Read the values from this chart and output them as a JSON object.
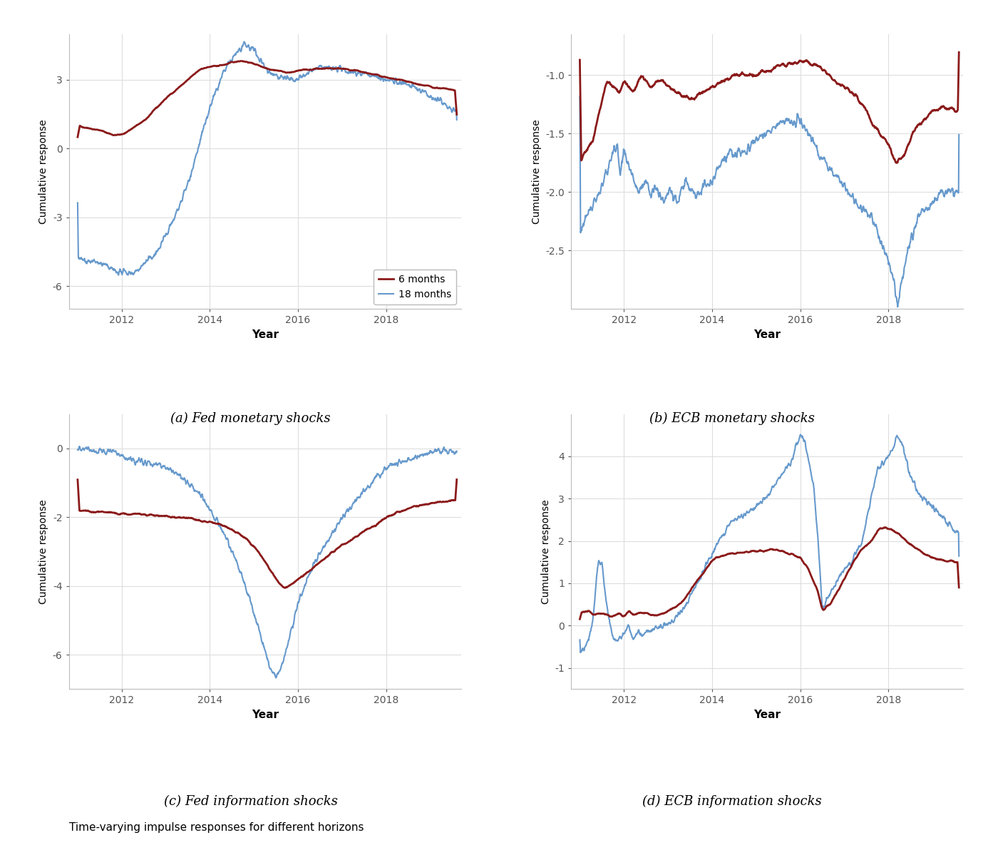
{
  "title": "Time-varying impulse responses for different horizons",
  "subplots": [
    {
      "label": "(a) Fed monetary shocks",
      "ylabel": "Cumulative response",
      "xlabel": "Year",
      "ylim": [
        -7,
        5
      ],
      "yticks": [
        -6,
        -3,
        0,
        3
      ],
      "xlim": [
        2010.8,
        2019.7
      ],
      "xticks": [
        2012,
        2014,
        2016,
        2018
      ],
      "legend": true
    },
    {
      "label": "(b) ECB monetary shocks",
      "ylabel": "Cumulative response",
      "xlabel": "Year",
      "ylim": [
        -3.0,
        -0.65
      ],
      "yticks": [
        -2.5,
        -2.0,
        -1.5,
        -1.0
      ],
      "xlim": [
        2010.8,
        2019.7
      ],
      "xticks": [
        2012,
        2014,
        2016,
        2018
      ],
      "legend": false
    },
    {
      "label": "(c) Fed information shocks",
      "ylabel": "Cumulative response",
      "xlabel": "Year",
      "ylim": [
        -7,
        1
      ],
      "yticks": [
        -6,
        -4,
        -2,
        0
      ],
      "xlim": [
        2010.8,
        2019.7
      ],
      "xticks": [
        2012,
        2014,
        2016,
        2018
      ],
      "legend": false
    },
    {
      "label": "(d) ECB information shocks",
      "ylabel": "Cumulative response",
      "xlabel": "Year",
      "ylim": [
        -1.5,
        5
      ],
      "yticks": [
        -1,
        0,
        1,
        2,
        3,
        4
      ],
      "xlim": [
        2010.8,
        2019.7
      ],
      "xticks": [
        2012,
        2014,
        2016,
        2018
      ],
      "legend": false
    }
  ],
  "color_6m": "#8B1A1A",
  "color_18m": "#6699CC",
  "lw_6m": 2.0,
  "lw_18m": 1.5,
  "bg_color": "#FFFFFF",
  "grid_color": "#DDDDDD",
  "legend_labels": [
    "6 months",
    "18 months"
  ]
}
